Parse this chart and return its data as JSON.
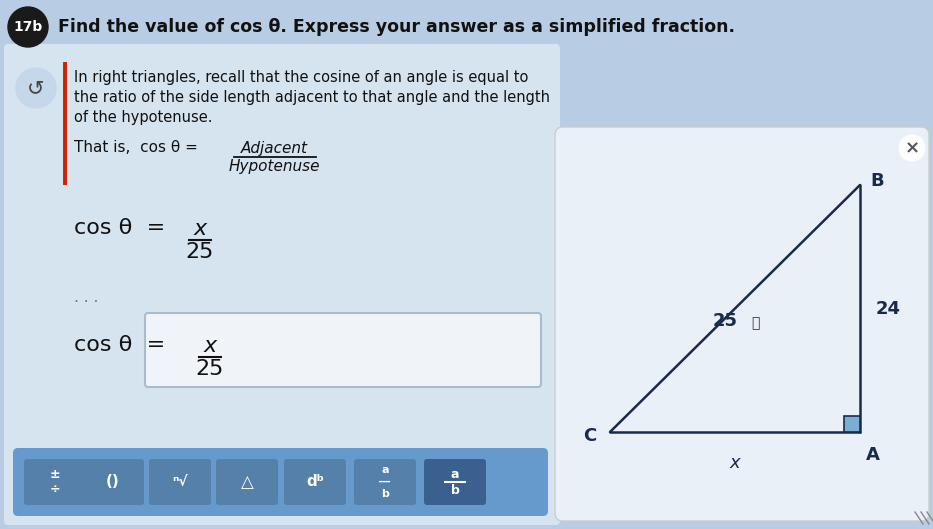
{
  "bg_color": "#b8cce4",
  "panel_bg": "#d6e4f0",
  "title_text": "Find the value of cos θ. Express your answer as a simplified fraction.",
  "badge_text": "17b",
  "badge_bg": "#1a1a1a",
  "badge_text_color": "#ffffff",
  "hint_lines": [
    "In right triangles, recall that the cosine of an angle is equal to",
    "the ratio of the side length adjacent to that angle and the length",
    "of the hypotenuse."
  ],
  "adj_text": "Adjacent",
  "hyp_text": "Hypotenuse",
  "line_color": "#1a2a4a",
  "label_color": "#1a2a4a",
  "right_angle_color": "#7aafd4",
  "toolbar_color": "#6699cc",
  "panel_border": "#c0d0e0"
}
